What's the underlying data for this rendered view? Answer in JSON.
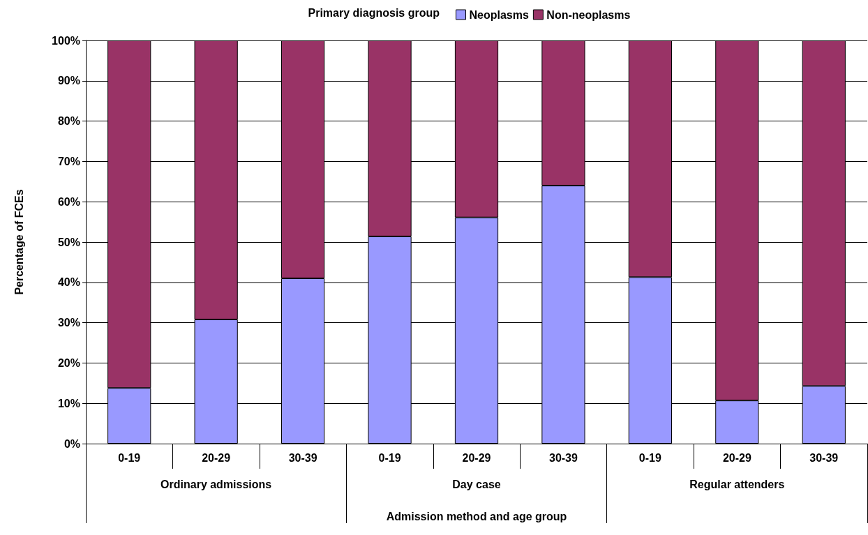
{
  "chart_data": {
    "type": "bar",
    "stacked": true,
    "xlabel": "Admission method and age group",
    "ylabel": "Percentage of FCEs",
    "legend_title": "Primary diagnosis group",
    "legend": "top",
    "categories": [
      "0-19",
      "20-29",
      "30-39",
      "0-19",
      "20-29",
      "30-39",
      "0-19",
      "20-29",
      "30-39"
    ],
    "annotations": [
      "Ordinary admissions",
      "Day case",
      "Regular attenders"
    ],
    "series": [
      {
        "name": "Neoplasms",
        "color": "#9999ff",
        "values": [
          13.8,
          30.8,
          41,
          51.4,
          56.1,
          64,
          41.3,
          10.7,
          14.3
        ]
      },
      {
        "name": "Non-neoplasms",
        "color": "#993366",
        "values": [
          86.2,
          69.2,
          59,
          48.6,
          43.9,
          36,
          58.7,
          89.3,
          85.7
        ]
      }
    ],
    "ylim": [
      0,
      100
    ],
    "yticks": [
      {
        "value": 0,
        "label": "0%"
      },
      {
        "value": 10,
        "label": "10%"
      },
      {
        "value": 20,
        "label": "20%"
      },
      {
        "value": 30,
        "label": "30%"
      },
      {
        "value": 40,
        "label": "40%"
      },
      {
        "value": 50,
        "label": "50%"
      },
      {
        "value": 60,
        "label": "60%"
      },
      {
        "value": 70,
        "label": "70%"
      },
      {
        "value": 80,
        "label": "80%"
      },
      {
        "value": 90,
        "label": "90%"
      },
      {
        "value": 100,
        "label": "100%"
      }
    ],
    "grid": "y"
  }
}
